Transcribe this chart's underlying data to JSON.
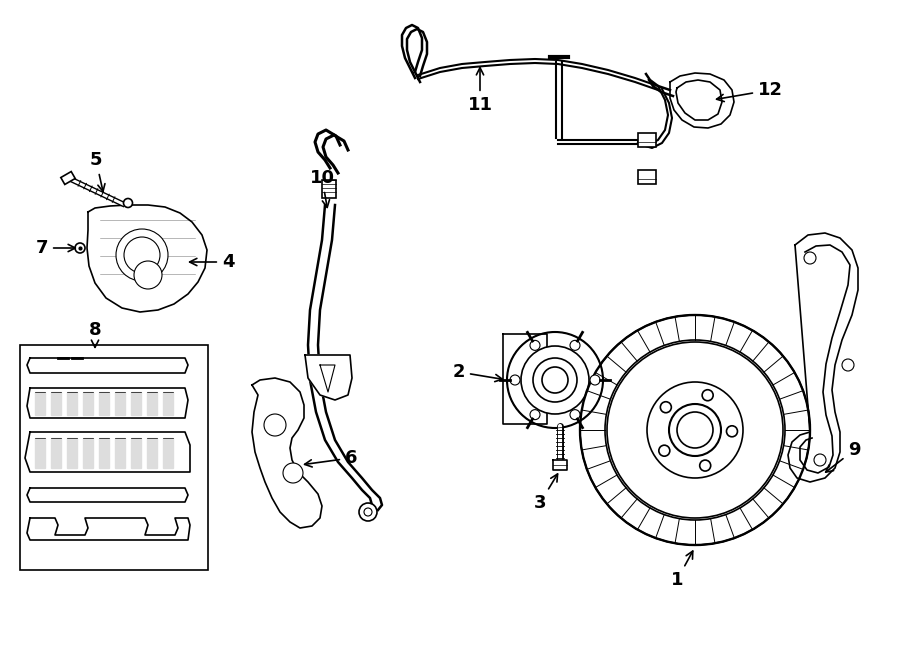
{
  "bg_color": "#ffffff",
  "lc": "#000000",
  "figsize": [
    9.0,
    6.61
  ],
  "dpi": 100,
  "lw": 1.2
}
